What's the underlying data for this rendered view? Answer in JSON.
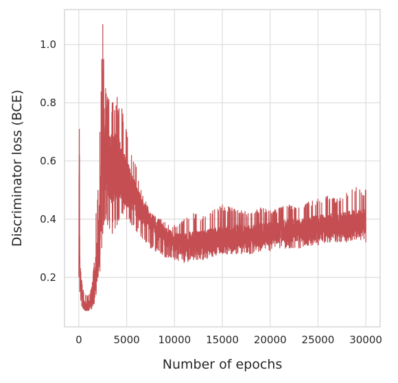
{
  "chart_data": {
    "type": "line",
    "title": "",
    "xlabel": "Number of epochs",
    "ylabel": "Discriminator loss (BCE)",
    "xlim": [
      -1500,
      31500
    ],
    "ylim": [
      0.03,
      1.12
    ],
    "xticks": [
      0,
      5000,
      10000,
      15000,
      20000,
      25000,
      30000
    ],
    "yticks": [
      0.2,
      0.4,
      0.6,
      0.8,
      1.0
    ],
    "xtick_labels": [
      "0",
      "5000",
      "10000",
      "15000",
      "20000",
      "25000",
      "30000"
    ],
    "ytick_labels": [
      "0.2",
      "0.4",
      "0.6",
      "0.8",
      "1.0"
    ],
    "grid": true,
    "legend": "none",
    "color": "#c44e52",
    "series": [
      {
        "x": [
          0,
          50,
          100,
          200,
          300,
          500,
          700,
          1000,
          1300,
          1600,
          1800,
          2000,
          2200,
          2400,
          2500,
          2600,
          2800,
          3000,
          3500,
          4000,
          4500,
          5000,
          5500,
          6000,
          6500,
          7000,
          7500,
          8000,
          9000,
          10000,
          11000,
          12000,
          13000,
          14000,
          15000,
          16000,
          17000,
          18000,
          19000,
          20000,
          21000,
          22000,
          23000,
          24000,
          25000,
          26000,
          27000,
          28000,
          29000,
          30000
        ],
        "values": [
          0.2,
          0.7,
          0.25,
          0.18,
          0.14,
          0.11,
          0.1,
          0.1,
          0.12,
          0.16,
          0.22,
          0.3,
          0.4,
          0.55,
          0.75,
          0.65,
          0.62,
          0.6,
          0.57,
          0.58,
          0.56,
          0.52,
          0.5,
          0.47,
          0.43,
          0.41,
          0.39,
          0.37,
          0.34,
          0.32,
          0.31,
          0.315,
          0.32,
          0.325,
          0.33,
          0.335,
          0.34,
          0.34,
          0.345,
          0.35,
          0.355,
          0.36,
          0.36,
          0.365,
          0.37,
          0.375,
          0.38,
          0.38,
          0.385,
          0.39
        ],
        "upper_envelope": [
          0.2,
          0.71,
          0.27,
          0.22,
          0.19,
          0.15,
          0.14,
          0.14,
          0.16,
          0.25,
          0.42,
          0.5,
          0.7,
          0.95,
          1.07,
          0.95,
          0.85,
          0.82,
          0.8,
          0.82,
          0.78,
          0.7,
          0.62,
          0.58,
          0.5,
          0.46,
          0.42,
          0.41,
          0.39,
          0.38,
          0.4,
          0.42,
          0.41,
          0.43,
          0.45,
          0.44,
          0.43,
          0.42,
          0.44,
          0.43,
          0.44,
          0.45,
          0.44,
          0.46,
          0.47,
          0.48,
          0.47,
          0.49,
          0.51,
          0.5
        ],
        "lower_envelope": [
          0.2,
          0.35,
          0.15,
          0.12,
          0.1,
          0.09,
          0.085,
          0.085,
          0.09,
          0.11,
          0.14,
          0.2,
          0.22,
          0.3,
          0.35,
          0.38,
          0.4,
          0.38,
          0.35,
          0.38,
          0.42,
          0.4,
          0.38,
          0.36,
          0.34,
          0.32,
          0.3,
          0.29,
          0.27,
          0.26,
          0.25,
          0.26,
          0.26,
          0.27,
          0.28,
          0.28,
          0.28,
          0.28,
          0.29,
          0.29,
          0.3,
          0.3,
          0.3,
          0.31,
          0.31,
          0.32,
          0.32,
          0.32,
          0.33,
          0.32
        ]
      }
    ]
  }
}
